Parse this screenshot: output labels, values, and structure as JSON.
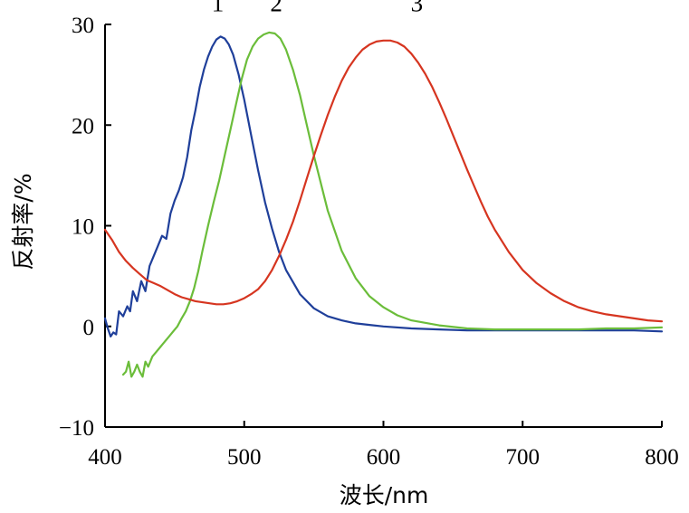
{
  "chart_data": {
    "type": "line",
    "xlabel": "波长/nm",
    "ylabel": "反射率/%",
    "xlim": [
      400,
      800
    ],
    "ylim": [
      -10,
      30
    ],
    "xticks": [
      400,
      500,
      600,
      700,
      800
    ],
    "xtick_labels": [
      "400",
      "500",
      "600",
      "700",
      "800"
    ],
    "yticks": [
      -10,
      0,
      10,
      20,
      30
    ],
    "ytick_labels": [
      "−10",
      "0",
      "10",
      "20",
      "30"
    ],
    "grid": false,
    "series": [
      {
        "label": "1",
        "color": "#1f3f9a",
        "x": [
          400,
          402,
          404,
          406,
          408,
          410,
          413,
          416,
          418,
          420,
          423,
          426,
          429,
          432,
          435,
          438,
          441,
          444,
          447,
          450,
          453,
          456,
          459,
          462,
          465,
          468,
          471,
          474,
          477,
          480,
          483,
          486,
          489,
          492,
          496,
          500,
          505,
          510,
          515,
          520,
          525,
          530,
          540,
          550,
          560,
          570,
          580,
          590,
          600,
          620,
          640,
          660,
          680,
          700,
          720,
          740,
          760,
          780,
          800
        ],
        "y": [
          0.8,
          -0.2,
          -1.0,
          -0.6,
          -0.8,
          1.5,
          1.0,
          2.0,
          1.5,
          3.5,
          2.5,
          4.5,
          3.5,
          6.0,
          7.0,
          8.0,
          9.0,
          8.7,
          11.2,
          12.5,
          13.5,
          14.8,
          16.8,
          19.5,
          21.5,
          23.8,
          25.5,
          26.8,
          27.8,
          28.5,
          28.8,
          28.6,
          28.0,
          27.0,
          25.0,
          22.5,
          19.0,
          15.5,
          12.3,
          9.7,
          7.4,
          5.6,
          3.2,
          1.8,
          1.0,
          0.6,
          0.3,
          0.15,
          0.0,
          -0.2,
          -0.3,
          -0.4,
          -0.4,
          -0.4,
          -0.4,
          -0.4,
          -0.4,
          -0.4,
          -0.5
        ]
      },
      {
        "label": "2",
        "color": "#6bbd3a",
        "x": [
          413,
          415,
          417,
          419,
          421,
          423,
          425,
          427,
          429,
          431,
          434,
          437,
          440,
          443,
          446,
          449,
          452,
          455,
          458,
          461,
          464,
          467,
          470,
          474,
          478,
          482,
          486,
          490,
          494,
          498,
          502,
          506,
          510,
          514,
          518,
          522,
          526,
          530,
          535,
          540,
          545,
          550,
          560,
          570,
          580,
          590,
          600,
          610,
          620,
          640,
          660,
          680,
          700,
          720,
          740,
          760,
          780,
          800
        ],
        "y": [
          -4.8,
          -4.5,
          -3.5,
          -5.0,
          -4.5,
          -3.8,
          -4.5,
          -5.0,
          -3.5,
          -4.0,
          -3.0,
          -2.5,
          -2.0,
          -1.5,
          -1.0,
          -0.5,
          0.0,
          0.8,
          1.5,
          2.5,
          3.8,
          5.5,
          7.5,
          10.0,
          12.3,
          14.5,
          17.0,
          19.5,
          22.0,
          24.5,
          26.5,
          27.8,
          28.6,
          29.0,
          29.2,
          29.1,
          28.6,
          27.5,
          25.5,
          23.0,
          20.0,
          17.0,
          11.5,
          7.5,
          4.8,
          3.0,
          1.9,
          1.1,
          0.6,
          0.1,
          -0.2,
          -0.3,
          -0.3,
          -0.3,
          -0.3,
          -0.2,
          -0.2,
          -0.1
        ]
      },
      {
        "label": "3",
        "color": "#d63520",
        "x": [
          400,
          405,
          410,
          415,
          420,
          425,
          430,
          435,
          440,
          445,
          450,
          455,
          460,
          465,
          470,
          475,
          480,
          485,
          490,
          495,
          500,
          505,
          510,
          515,
          520,
          525,
          530,
          535,
          540,
          545,
          550,
          555,
          560,
          565,
          570,
          575,
          580,
          585,
          590,
          595,
          600,
          605,
          610,
          615,
          620,
          625,
          630,
          635,
          640,
          645,
          650,
          655,
          660,
          665,
          670,
          675,
          680,
          690,
          700,
          710,
          720,
          730,
          740,
          750,
          760,
          770,
          780,
          790,
          800
        ],
        "y": [
          9.6,
          8.6,
          7.4,
          6.5,
          5.8,
          5.2,
          4.6,
          4.3,
          4.0,
          3.6,
          3.2,
          2.9,
          2.7,
          2.5,
          2.4,
          2.3,
          2.2,
          2.2,
          2.3,
          2.5,
          2.8,
          3.2,
          3.7,
          4.5,
          5.6,
          7.0,
          8.6,
          10.4,
          12.5,
          14.7,
          16.9,
          19.0,
          21.0,
          22.8,
          24.4,
          25.7,
          26.7,
          27.5,
          28.0,
          28.3,
          28.4,
          28.4,
          28.2,
          27.8,
          27.1,
          26.2,
          25.1,
          23.8,
          22.3,
          20.7,
          19.0,
          17.3,
          15.6,
          14.0,
          12.4,
          10.9,
          9.6,
          7.4,
          5.6,
          4.3,
          3.3,
          2.5,
          1.9,
          1.5,
          1.2,
          1.0,
          0.8,
          0.6,
          0.5
        ]
      }
    ],
    "annotations": [
      {
        "text": "1",
        "x": 481,
        "y": 31.3
      },
      {
        "text": "2",
        "x": 523,
        "y": 31.3
      },
      {
        "text": "3",
        "x": 624,
        "y": 31.3
      }
    ]
  }
}
